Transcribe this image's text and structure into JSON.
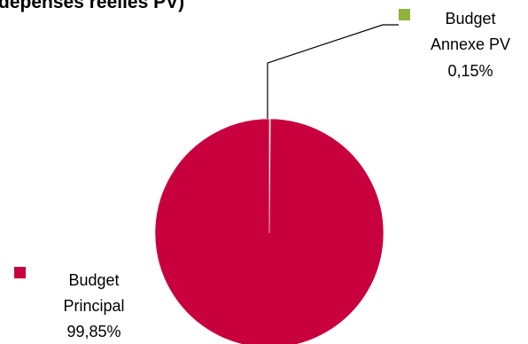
{
  "chart_data": {
    "type": "pie",
    "title": "dépenses réelles PV)",
    "slices": [
      {
        "name": "Budget Principal",
        "label_lines": [
          "Budget",
          "Principal"
        ],
        "value": 99.85,
        "value_label": "99,85%",
        "color": "#c8003e"
      },
      {
        "name": "Budget Annexe PV",
        "label_lines": [
          "Budget",
          "Annexe PV"
        ],
        "value": 0.15,
        "value_label": "0,15%",
        "color": "#8db33a"
      }
    ],
    "legend": "inline-labels",
    "leader_line_color": "#000000"
  }
}
